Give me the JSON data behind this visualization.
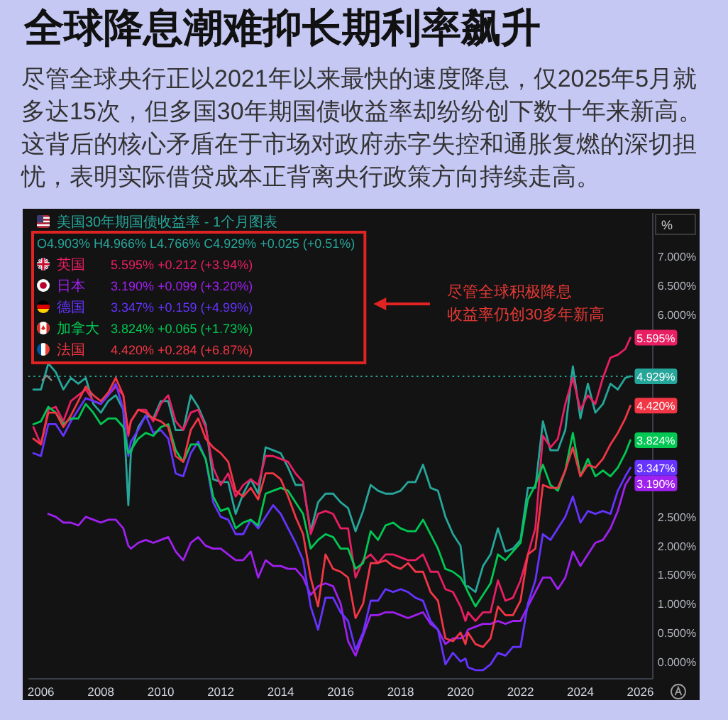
{
  "chart_data": {
    "type": "line",
    "title": "全球降息潮难抑长期利率飙升",
    "subtitle": "尽管全球央行正以2021年以来最快的速度降息，仅2025年5月就多达15次，但多国30年期国债收益率却纷纷创下数十年来新高。这背后的核心矛盾在于市场对政府赤字失控和通胀复燃的深切担忧，表明实际借贷成本正背离央行政策方向持续走高。",
    "ylabel": "%",
    "x": [
      "2005-10",
      "2006-01",
      "2006-04",
      "2006-07",
      "2006-10",
      "2007-01",
      "2007-04",
      "2007-07",
      "2007-10",
      "2008-01",
      "2008-04",
      "2008-07",
      "2008-10",
      "2008-12",
      "2009-01",
      "2009-04",
      "2009-07",
      "2009-10",
      "2010-01",
      "2010-04",
      "2010-07",
      "2010-10",
      "2011-01",
      "2011-04",
      "2011-07",
      "2011-10",
      "2012-01",
      "2012-04",
      "2012-07",
      "2012-10",
      "2013-01",
      "2013-04",
      "2013-07",
      "2013-10",
      "2014-01",
      "2014-04",
      "2014-07",
      "2014-10",
      "2015-01",
      "2015-04",
      "2015-07",
      "2015-10",
      "2016-01",
      "2016-04",
      "2016-07",
      "2016-10",
      "2017-01",
      "2017-04",
      "2017-07",
      "2017-10",
      "2018-01",
      "2018-04",
      "2018-07",
      "2018-10",
      "2019-01",
      "2019-04",
      "2019-07",
      "2019-10",
      "2020-01",
      "2020-03",
      "2020-04",
      "2020-07",
      "2020-10",
      "2021-01",
      "2021-04",
      "2021-07",
      "2021-10",
      "2022-01",
      "2022-04",
      "2022-07",
      "2022-10",
      "2023-01",
      "2023-04",
      "2023-07",
      "2023-10",
      "2024-01",
      "2024-04",
      "2024-07",
      "2024-10",
      "2025-01",
      "2025-04",
      "2025-07",
      "2025-09"
    ],
    "xlim": [
      "2005-08",
      "2026-06"
    ],
    "xticks": [
      "2006",
      "2008",
      "2010",
      "2012",
      "2014",
      "2016",
      "2018",
      "2020",
      "2022",
      "2024",
      "2026"
    ],
    "ylim": [
      -0.3,
      7.75
    ],
    "yticks": [
      {
        "value": 0,
        "label": "0.000%"
      },
      {
        "value": 0.5,
        "label": "0.500%"
      },
      {
        "value": 1,
        "label": "1.000%"
      },
      {
        "value": 1.5,
        "label": "1.500%"
      },
      {
        "value": 2,
        "label": "2.000%"
      },
      {
        "value": 2.5,
        "label": "2.500%"
      },
      {
        "value": 6,
        "label": "6.000%"
      },
      {
        "value": 6.5,
        "label": "6.500%"
      },
      {
        "value": 7,
        "label": "7.000%"
      }
    ],
    "legend": "top left",
    "ref_lines": [
      {
        "axis": "y",
        "value": 4.929,
        "color": "#26a69a",
        "line_style": "dotted"
      }
    ],
    "series": [
      {
        "name": "美国30年期国债收益率 - 1个月图表",
        "color": "#26a69a",
        "values": [
          4.7,
          4.7,
          5.15,
          5.0,
          4.7,
          4.9,
          4.8,
          4.9,
          4.45,
          4.3,
          4.5,
          4.6,
          4.35,
          2.7,
          3.6,
          4.05,
          4.25,
          4.2,
          4.5,
          4.5,
          4.0,
          4.0,
          4.6,
          4.4,
          4.1,
          3.15,
          3.1,
          3.1,
          2.55,
          2.9,
          3.15,
          2.9,
          3.7,
          3.65,
          3.6,
          3.35,
          3.05,
          3.05,
          2.25,
          2.75,
          2.9,
          2.9,
          2.75,
          2.65,
          2.25,
          2.6,
          3.05,
          2.95,
          2.9,
          2.9,
          2.95,
          3.1,
          3.1,
          3.4,
          3.0,
          2.95,
          2.5,
          2.2,
          2.0,
          1.3,
          1.3,
          1.2,
          1.65,
          1.85,
          2.3,
          1.9,
          1.95,
          2.1,
          3.0,
          3.0,
          4.15,
          3.65,
          3.65,
          4.0,
          5.1,
          4.2,
          4.8,
          4.3,
          4.45,
          4.8,
          4.7,
          4.9,
          4.929
        ],
        "value_labels": [
          null,
          null,
          null,
          null,
          null,
          null,
          null,
          null,
          null,
          null,
          null,
          null,
          null,
          null,
          null,
          null,
          null,
          null,
          null,
          null,
          null,
          null,
          null,
          null,
          null,
          null,
          null,
          null,
          null,
          null,
          null,
          null,
          null,
          null,
          null,
          null,
          null,
          null,
          null,
          null,
          null,
          null,
          null,
          null,
          null,
          null,
          null,
          null,
          null,
          null,
          null,
          null,
          null,
          null,
          null,
          null,
          null,
          null,
          null,
          null,
          null,
          null,
          null,
          null,
          null,
          null,
          null,
          null,
          null,
          null,
          null,
          null,
          null,
          null,
          null,
          null,
          null,
          null,
          null,
          null,
          null,
          null,
          "4.929%"
        ]
      },
      {
        "name": "英国",
        "color": "#e91e63",
        "values": [
          4.05,
          3.75,
          4.35,
          4.4,
          4.15,
          4.5,
          4.6,
          4.7,
          4.5,
          4.45,
          4.6,
          4.75,
          4.6,
          3.9,
          4.15,
          4.35,
          4.35,
          4.15,
          4.45,
          4.6,
          4.15,
          4.0,
          4.3,
          4.35,
          4.05,
          3.35,
          3.05,
          3.25,
          2.85,
          3.05,
          3.15,
          3.05,
          3.55,
          3.55,
          3.5,
          3.45,
          3.25,
          3.1,
          2.2,
          2.55,
          2.6,
          2.55,
          2.3,
          2.3,
          1.45,
          1.75,
          1.85,
          1.7,
          1.85,
          1.85,
          1.8,
          1.75,
          1.75,
          1.85,
          1.55,
          1.55,
          1.25,
          1.2,
          0.95,
          0.7,
          0.85,
          0.7,
          0.85,
          0.85,
          1.4,
          1.05,
          1.1,
          1.4,
          1.85,
          2.3,
          3.9,
          3.7,
          3.85,
          4.45,
          4.9,
          4.35,
          4.6,
          4.45,
          4.9,
          5.25,
          5.3,
          5.4,
          5.595
        ],
        "value_labels": [
          null,
          null,
          null,
          null,
          null,
          null,
          null,
          null,
          null,
          null,
          null,
          null,
          null,
          null,
          null,
          null,
          null,
          null,
          null,
          null,
          null,
          null,
          null,
          null,
          null,
          null,
          null,
          null,
          null,
          null,
          null,
          null,
          null,
          null,
          null,
          null,
          null,
          null,
          null,
          null,
          null,
          null,
          null,
          null,
          null,
          null,
          null,
          null,
          null,
          null,
          null,
          null,
          null,
          null,
          null,
          null,
          null,
          null,
          null,
          null,
          null,
          null,
          null,
          null,
          null,
          null,
          null,
          null,
          null,
          null,
          null,
          null,
          null,
          null,
          null,
          null,
          null,
          null,
          null,
          null,
          null,
          null,
          "5.595%"
        ]
      },
      {
        "name": "日本",
        "color": "#a020f0",
        "values": [
          null,
          null,
          2.55,
          2.5,
          2.4,
          2.4,
          2.35,
          2.5,
          2.45,
          2.4,
          2.45,
          2.45,
          2.3,
          2.0,
          1.95,
          2.05,
          2.1,
          2.05,
          2.1,
          2.15,
          1.9,
          1.75,
          2.05,
          2.15,
          2.0,
          1.95,
          1.95,
          1.85,
          1.75,
          1.75,
          1.9,
          1.45,
          1.75,
          1.65,
          1.65,
          1.6,
          1.6,
          1.45,
          1.15,
          1.3,
          1.35,
          1.3,
          1.0,
          0.35,
          0.1,
          0.45,
          0.8,
          0.8,
          0.85,
          0.85,
          0.8,
          0.75,
          0.8,
          0.85,
          0.65,
          0.55,
          0.3,
          0.4,
          0.4,
          0.45,
          0.55,
          0.6,
          0.65,
          0.65,
          0.7,
          0.65,
          0.7,
          0.7,
          0.95,
          1.2,
          1.45,
          1.45,
          1.25,
          1.45,
          1.9,
          1.65,
          1.85,
          2.05,
          2.1,
          2.3,
          2.6,
          3.05,
          3.19
        ],
        "value_labels": [
          null,
          null,
          null,
          null,
          null,
          null,
          null,
          null,
          null,
          null,
          null,
          null,
          null,
          null,
          null,
          null,
          null,
          null,
          null,
          null,
          null,
          null,
          null,
          null,
          null,
          null,
          null,
          null,
          null,
          null,
          null,
          null,
          null,
          null,
          null,
          null,
          null,
          null,
          null,
          null,
          null,
          null,
          null,
          null,
          null,
          null,
          null,
          null,
          null,
          null,
          null,
          null,
          null,
          null,
          null,
          null,
          null,
          null,
          null,
          null,
          null,
          null,
          null,
          null,
          null,
          null,
          null,
          null,
          null,
          null,
          null,
          null,
          null,
          null,
          null,
          null,
          null,
          null,
          null,
          null,
          null,
          null,
          "3.190%"
        ]
      },
      {
        "name": "德国",
        "color": "#6633ff",
        "values": [
          3.6,
          3.55,
          4.1,
          4.1,
          3.9,
          4.15,
          4.35,
          4.55,
          4.5,
          4.45,
          4.6,
          4.8,
          4.35,
          3.55,
          3.8,
          4.0,
          4.25,
          3.95,
          4.0,
          3.85,
          3.25,
          3.2,
          3.6,
          3.8,
          3.5,
          2.75,
          2.5,
          2.45,
          2.2,
          2.2,
          2.45,
          2.3,
          2.5,
          2.7,
          2.55,
          2.3,
          2.05,
          1.75,
          0.95,
          0.55,
          1.1,
          1.1,
          0.85,
          0.7,
          0.2,
          0.5,
          1.05,
          1.05,
          1.25,
          1.2,
          1.25,
          1.2,
          1.1,
          1.05,
          0.7,
          0.55,
          -0.05,
          0.15,
          0.0,
          0.05,
          -0.1,
          -0.15,
          -0.15,
          -0.05,
          0.15,
          0.1,
          0.25,
          0.25,
          1.0,
          1.4,
          2.2,
          2.1,
          2.3,
          2.5,
          2.85,
          2.4,
          2.6,
          2.55,
          2.6,
          2.55,
          2.95,
          3.2,
          3.347
        ],
        "value_labels": [
          null,
          null,
          null,
          null,
          null,
          null,
          null,
          null,
          null,
          null,
          null,
          null,
          null,
          null,
          null,
          null,
          null,
          null,
          null,
          null,
          null,
          null,
          null,
          null,
          null,
          null,
          null,
          null,
          null,
          null,
          null,
          null,
          null,
          null,
          null,
          null,
          null,
          null,
          null,
          null,
          null,
          null,
          null,
          null,
          null,
          null,
          null,
          null,
          null,
          null,
          null,
          null,
          null,
          null,
          null,
          null,
          null,
          null,
          null,
          null,
          null,
          null,
          null,
          null,
          null,
          null,
          null,
          null,
          null,
          null,
          null,
          null,
          null,
          null,
          null,
          null,
          null,
          null,
          null,
          null,
          null,
          null,
          "3.347%"
        ]
      },
      {
        "name": "加拿大",
        "color": "#00c853",
        "values": [
          4.1,
          4.15,
          4.4,
          4.3,
          4.1,
          4.2,
          4.2,
          4.45,
          4.3,
          4.1,
          4.2,
          4.2,
          4.05,
          3.6,
          3.65,
          3.85,
          3.95,
          3.9,
          4.05,
          4.1,
          3.65,
          3.45,
          3.75,
          3.75,
          3.5,
          2.85,
          2.6,
          2.65,
          2.3,
          2.4,
          2.45,
          2.35,
          2.9,
          2.95,
          3.0,
          2.95,
          2.75,
          2.55,
          1.95,
          2.1,
          2.2,
          2.15,
          1.95,
          1.95,
          1.6,
          1.7,
          2.25,
          2.1,
          2.35,
          2.4,
          2.3,
          2.25,
          2.25,
          2.45,
          2.2,
          1.95,
          1.6,
          1.55,
          1.45,
          1.3,
          1.2,
          0.95,
          1.15,
          1.35,
          1.85,
          1.75,
          1.9,
          2.05,
          2.8,
          3.05,
          3.4,
          3.05,
          2.95,
          3.3,
          3.95,
          3.2,
          3.5,
          3.2,
          3.3,
          3.2,
          3.35,
          3.6,
          3.824
        ],
        "value_labels": [
          null,
          null,
          null,
          null,
          null,
          null,
          null,
          null,
          null,
          null,
          null,
          null,
          null,
          null,
          null,
          null,
          null,
          null,
          null,
          null,
          null,
          null,
          null,
          null,
          null,
          null,
          null,
          null,
          null,
          null,
          null,
          null,
          null,
          null,
          null,
          null,
          null,
          null,
          null,
          null,
          null,
          null,
          null,
          null,
          null,
          null,
          null,
          null,
          null,
          null,
          null,
          null,
          null,
          null,
          null,
          null,
          null,
          null,
          null,
          null,
          null,
          null,
          null,
          null,
          null,
          null,
          null,
          null,
          null,
          null,
          null,
          null,
          null,
          null,
          null,
          null,
          null,
          null,
          null,
          null,
          null,
          null,
          "3.824%"
        ]
      },
      {
        "name": "法国",
        "color": "#f23645",
        "values": [
          3.85,
          3.75,
          4.3,
          4.3,
          4.05,
          4.25,
          4.5,
          4.75,
          4.6,
          4.5,
          4.65,
          4.9,
          4.6,
          3.95,
          4.15,
          4.35,
          4.3,
          4.2,
          4.15,
          4.05,
          3.55,
          3.45,
          4.0,
          4.2,
          3.85,
          3.7,
          3.6,
          3.45,
          2.95,
          2.85,
          3.0,
          2.8,
          3.25,
          3.25,
          3.15,
          2.85,
          2.5,
          2.2,
          1.45,
          0.95,
          1.85,
          1.6,
          1.55,
          1.45,
          0.75,
          1.0,
          1.7,
          1.7,
          1.75,
          1.65,
          1.6,
          1.7,
          1.55,
          1.55,
          1.2,
          1.05,
          0.4,
          0.35,
          0.5,
          0.3,
          0.5,
          0.3,
          0.25,
          0.4,
          0.95,
          0.8,
          0.8,
          1.05,
          1.85,
          1.95,
          3.05,
          3.0,
          3.0,
          3.3,
          3.7,
          3.2,
          3.4,
          3.35,
          3.5,
          3.75,
          3.95,
          4.2,
          4.42
        ],
        "value_labels": [
          null,
          null,
          null,
          null,
          null,
          null,
          null,
          null,
          null,
          null,
          null,
          null,
          null,
          null,
          null,
          null,
          null,
          null,
          null,
          null,
          null,
          null,
          null,
          null,
          null,
          null,
          null,
          null,
          null,
          null,
          null,
          null,
          null,
          null,
          null,
          null,
          null,
          null,
          null,
          null,
          null,
          null,
          null,
          null,
          null,
          null,
          null,
          null,
          null,
          null,
          null,
          null,
          null,
          null,
          null,
          null,
          null,
          null,
          null,
          null,
          null,
          null,
          null,
          null,
          null,
          null,
          null,
          null,
          null,
          null,
          null,
          null,
          null,
          null,
          null,
          null,
          null,
          null,
          null,
          null,
          null,
          null,
          "4.420%"
        ]
      }
    ],
    "annotations": [
      "O4.903% H4.966% L4.766% C4.929% +0.025 (+0.51%)",
      "5.595% +0.212 (+3.94%)",
      "3.190% +0.099 (+3.20%)",
      "3.347% +0.159 (+4.99%)",
      "3.824% +0.065 (+1.73%)",
      "4.420% +0.284 (+6.87%)",
      "尽管全球积极降息",
      "收益率仍创30多年新高"
    ]
  }
}
